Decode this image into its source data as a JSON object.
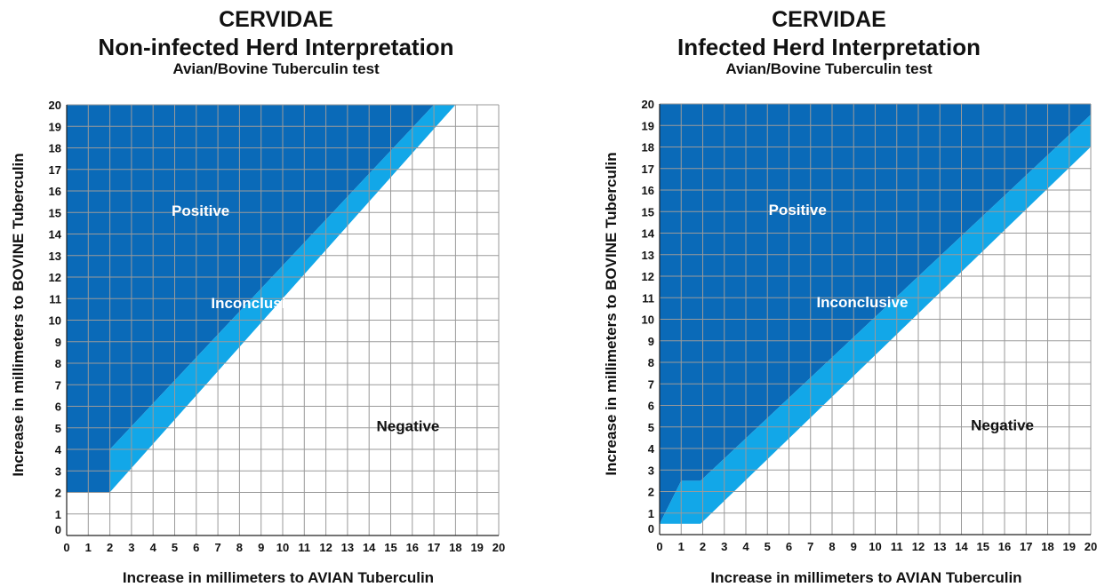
{
  "colors": {
    "positive": "#0a6ab8",
    "inconclusive": "#12a7e8",
    "negative": "#ffffff",
    "grid": "#9a9a9a",
    "label_light": "#ffffff",
    "label_dark": "#111111"
  },
  "chart_data": [
    {
      "type": "area",
      "title": "CERVIDAE",
      "subtitle": "Non-infected Herd Interpretation",
      "test_name": "Avian/Bovine Tuberculin test",
      "xlabel": "Increase in millimeters to AVIAN Tuberculin",
      "ylabel": "Increase in millimeters to BOVINE Tuberculin",
      "xlim": [
        0,
        20
      ],
      "ylim": [
        0,
        20
      ],
      "grid": true,
      "x_ticks": [
        "0",
        "1",
        "2",
        "3",
        "4",
        "5",
        "6",
        "7",
        "8",
        "9",
        "10",
        "11",
        "12",
        "13",
        "14",
        "15",
        "16",
        "17",
        "18",
        "19",
        "20"
      ],
      "y_ticks": [
        "0",
        "1",
        "2",
        "3",
        "4",
        "5",
        "6",
        "7",
        "8",
        "9",
        "10",
        "11",
        "12",
        "13",
        "14",
        "15",
        "16",
        "17",
        "18",
        "19",
        "20"
      ],
      "regions": [
        {
          "name": "Positive",
          "color_key": "positive",
          "label_at": [
            6.2,
            15.1
          ],
          "polygon": [
            [
              0,
              2
            ],
            [
              2,
              2
            ],
            [
              2,
              4
            ],
            [
              17,
              20
            ],
            [
              0,
              20
            ]
          ]
        },
        {
          "name": "Inconclusive",
          "color_key": "inconclusive",
          "label_at": [
            8.8,
            10.8
          ],
          "polygon": [
            [
              2,
              2
            ],
            [
              18,
              20
            ],
            [
              17,
              20
            ],
            [
              2,
              4
            ]
          ]
        },
        {
          "name": "Negative",
          "color_key": "negative",
          "label_at": [
            15.8,
            5.1
          ],
          "polygon": [
            [
              0,
              0
            ],
            [
              20,
              0
            ],
            [
              20,
              20
            ],
            [
              18,
              20
            ],
            [
              2,
              2
            ],
            [
              0,
              2
            ]
          ]
        }
      ]
    },
    {
      "type": "area",
      "title": "CERVIDAE",
      "subtitle": "Infected Herd Interpretation",
      "test_name": "Avian/Bovine Tuberculin test",
      "xlabel": "Increase in millimeters to AVIAN Tuberculin",
      "ylabel": "Increase in millimeters to BOVINE Tuberculin",
      "xlim": [
        0,
        20
      ],
      "ylim": [
        0,
        20
      ],
      "grid": true,
      "x_ticks": [
        "0",
        "1",
        "2",
        "3",
        "4",
        "5",
        "6",
        "7",
        "8",
        "9",
        "10",
        "11",
        "12",
        "13",
        "14",
        "15",
        "16",
        "17",
        "18",
        "19",
        "20"
      ],
      "y_ticks": [
        "0",
        "1",
        "2",
        "3",
        "4",
        "5",
        "6",
        "7",
        "8",
        "9",
        "10",
        "11",
        "12",
        "13",
        "14",
        "15",
        "16",
        "17",
        "18",
        "19",
        "20"
      ],
      "regions": [
        {
          "name": "Positive",
          "color_key": "positive",
          "label_at": [
            6.4,
            15.1
          ],
          "polygon": [
            [
              0,
              0.5
            ],
            [
              0,
              20
            ],
            [
              20,
              20
            ],
            [
              20,
              19.5
            ],
            [
              1.9,
              2.5
            ],
            [
              1,
              2.5
            ]
          ]
        },
        {
          "name": "Inconclusive",
          "color_key": "inconclusive",
          "label_at": [
            9.4,
            10.8
          ],
          "polygon": [
            [
              0,
              0.5
            ],
            [
              1.9,
              0.5
            ],
            [
              20,
              18
            ],
            [
              20,
              19.5
            ],
            [
              1.9,
              2.5
            ],
            [
              1,
              2.5
            ]
          ]
        },
        {
          "name": "Negative",
          "color_key": "negative",
          "label_at": [
            15.9,
            5.1
          ],
          "polygon": [
            [
              0,
              0
            ],
            [
              20,
              0
            ],
            [
              20,
              18
            ],
            [
              1.9,
              0.5
            ],
            [
              0,
              0.5
            ]
          ]
        }
      ]
    }
  ]
}
